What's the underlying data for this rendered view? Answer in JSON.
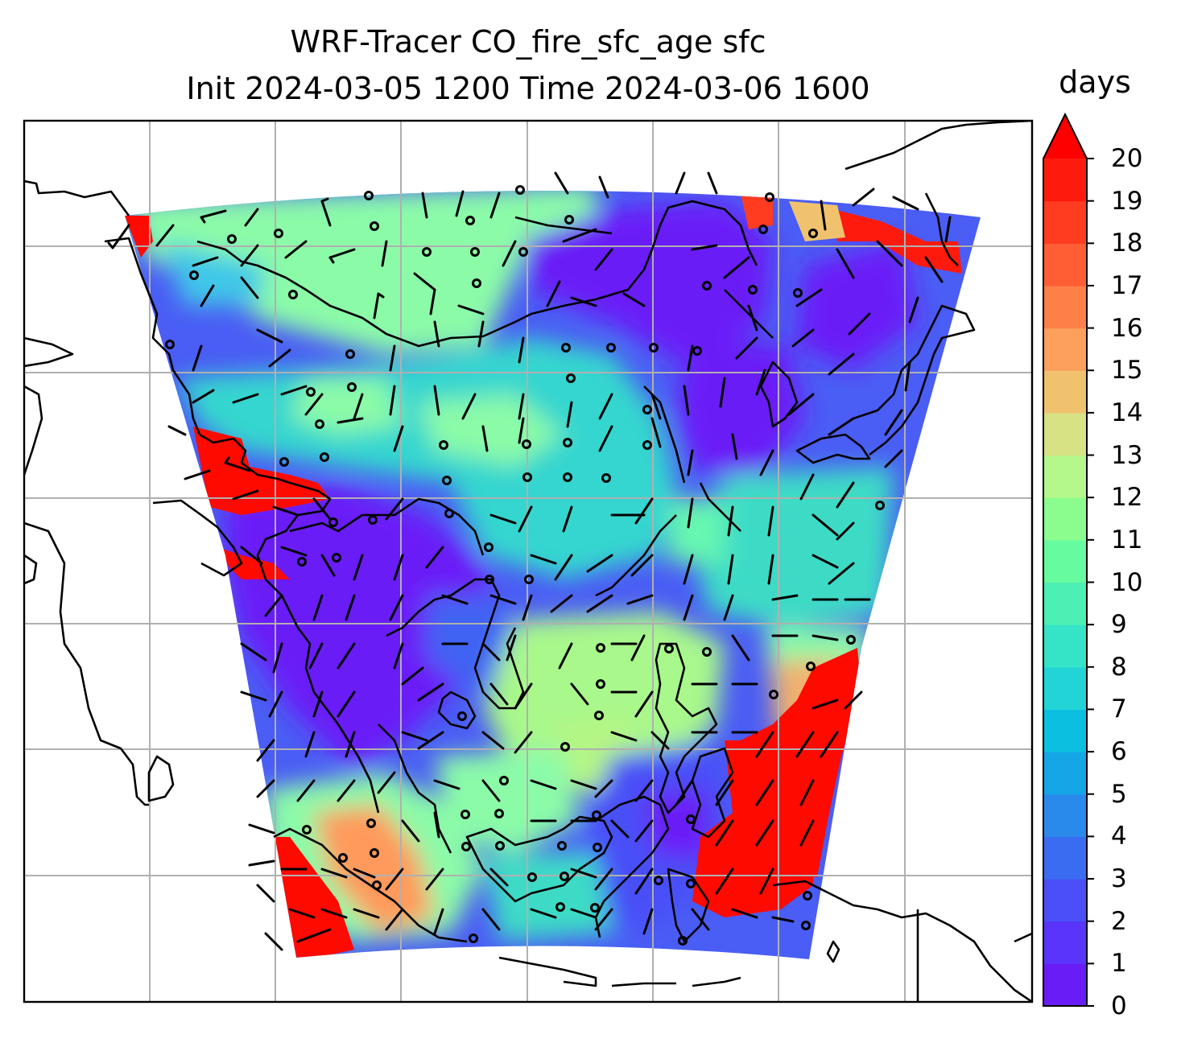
{
  "title": {
    "line1": "WRF-Tracer CO_fire_sfc_age sfc",
    "line2": "Init 2024-03-05 1200 Time 2024-03-06 1600"
  },
  "colorbar": {
    "unit": "days",
    "ticks": [
      "0",
      "1",
      "2",
      "3",
      "4",
      "5",
      "6",
      "7",
      "8",
      "9",
      "10",
      "11",
      "12",
      "13",
      "14",
      "15",
      "16",
      "17",
      "18",
      "19",
      "20"
    ],
    "colors": [
      "#6a1cf7",
      "#5a34fa",
      "#4a4ff7",
      "#3a6cf1",
      "#2a8aec",
      "#14a6e6",
      "#0bbfe0",
      "#22d4d6",
      "#35e3c6",
      "#4cf0b5",
      "#66fb9f",
      "#8bfd8f",
      "#b4f78a",
      "#d7e285",
      "#f0c26e",
      "#fca05c",
      "#ff7f48",
      "#ff5e34",
      "#ff3c20",
      "#ff1a0e"
    ],
    "extend_color": "#ff0000"
  },
  "map": {
    "region_colors": {
      "deep": "#6a1cf7",
      "blue": "#3c5ef5",
      "cyan": "#2fd8d0",
      "mint": "#88fba6",
      "lime": "#b5f585",
      "orange": "#ffa25c",
      "red": "#ff0a00"
    }
  }
}
